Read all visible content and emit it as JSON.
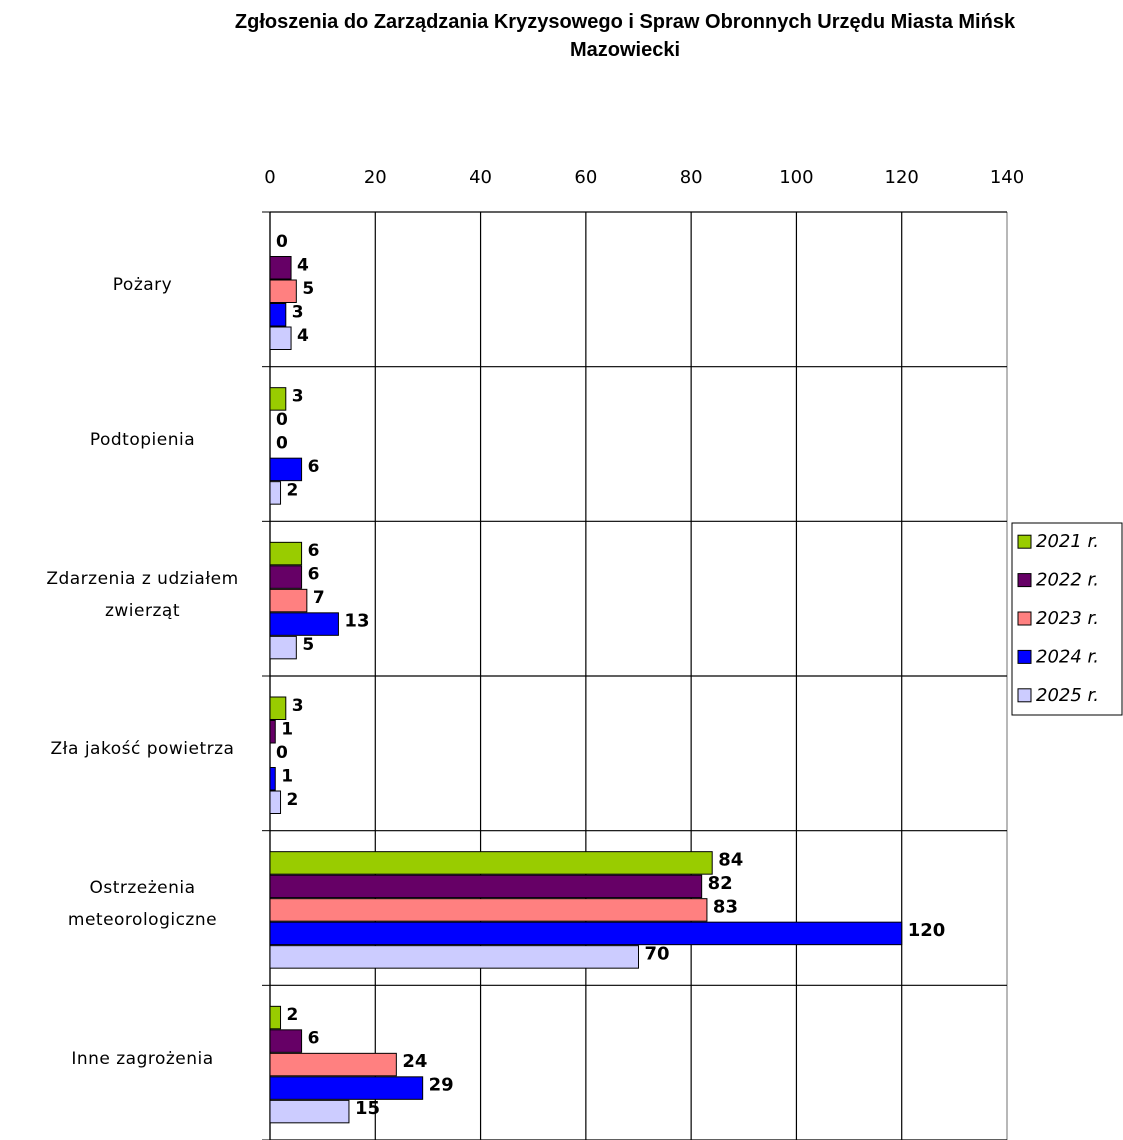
{
  "chart_data": {
    "type": "bar",
    "orientation": "horizontal",
    "title": "Zgłoszenia do Zarządzania Kryzysowego i Spraw Obronnych Urzędu Miasta Mińsk Mazowiecki",
    "categories": [
      "Pożary",
      "Podtopienia",
      "Zdarzenia z udziałem zwierząt",
      "Zła jakość powietrza",
      "Ostrzeżenia meteorologiczne",
      "Inne zagrożenia"
    ],
    "series": [
      {
        "name": "2021 r.",
        "color": "#99cc00",
        "values": [
          0,
          3,
          6,
          3,
          84,
          2
        ]
      },
      {
        "name": "2022 r.",
        "color": "#660066",
        "values": [
          4,
          0,
          6,
          1,
          82,
          6
        ]
      },
      {
        "name": "2023 r.",
        "color": "#ff8080",
        "values": [
          5,
          0,
          7,
          0,
          83,
          24
        ]
      },
      {
        "name": "2024 r.",
        "color": "#0000ff",
        "values": [
          3,
          6,
          13,
          1,
          120,
          29
        ]
      },
      {
        "name": "2025 r.",
        "color": "#ccccff",
        "values": [
          4,
          2,
          5,
          2,
          70,
          15
        ]
      }
    ],
    "xlim": [
      0,
      140
    ],
    "xticks": [
      0,
      20,
      40,
      60,
      80,
      100,
      120,
      140
    ],
    "grid": true,
    "legend": "right"
  }
}
